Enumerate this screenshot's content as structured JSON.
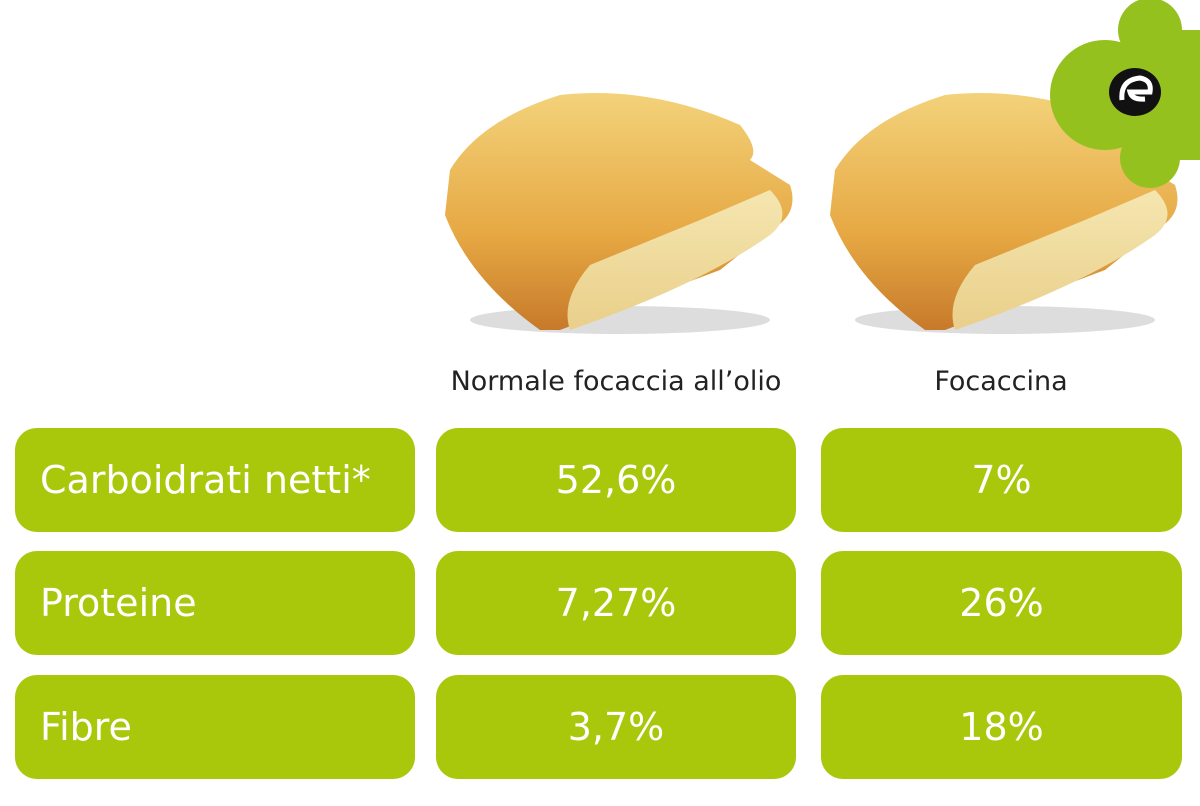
{
  "table": {
    "columns": [
      "Normale focaccia all’olio",
      "Focaccina"
    ],
    "rows": [
      [
        "Carboidrati netti*",
        "52,6%",
        "7%"
      ],
      [
        "Proteine",
        "7,27%",
        "26%"
      ],
      [
        "Fibre",
        "3,7%",
        "18%"
      ]
    ]
  }
}
